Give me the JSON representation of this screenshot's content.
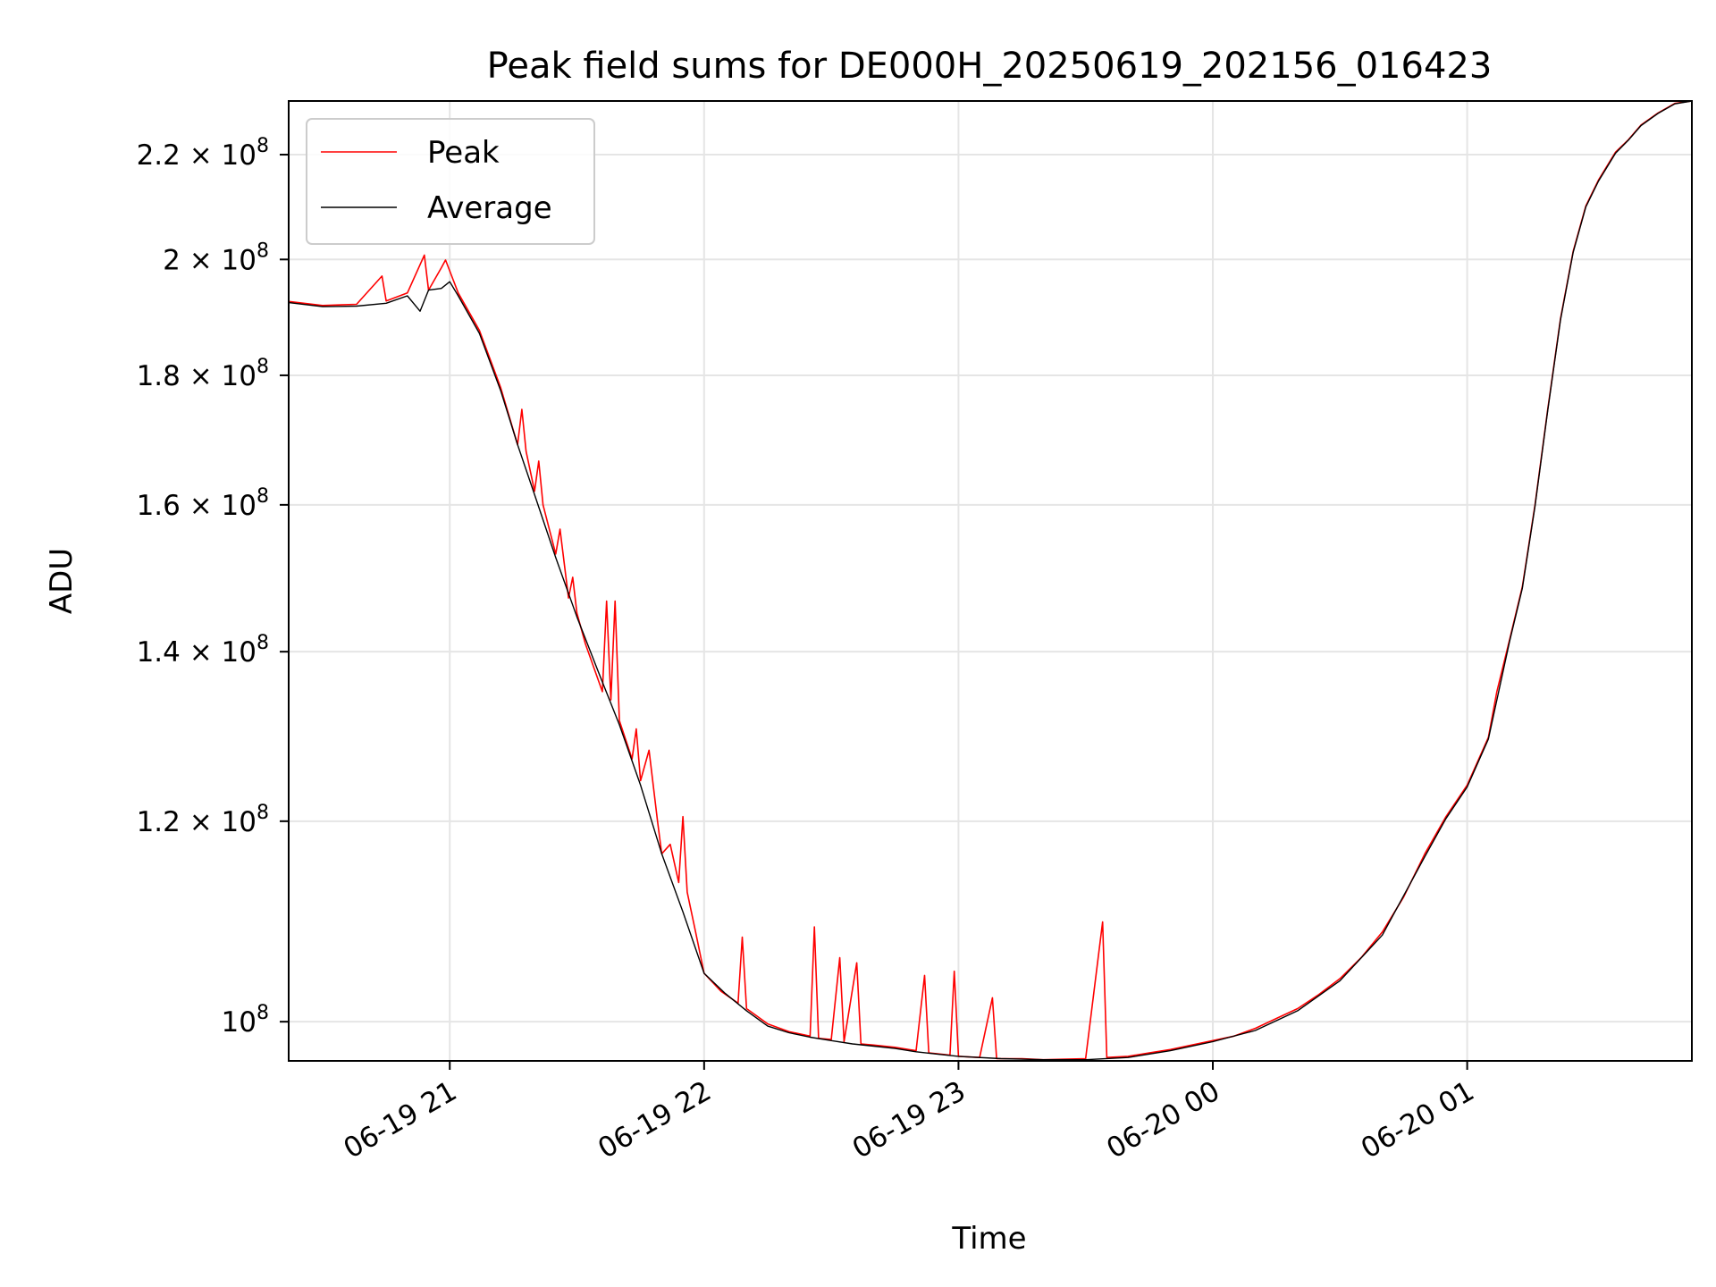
{
  "chart_data": {
    "type": "line",
    "title": "Peak field sums for DE000H_20250619_202156_016423",
    "xlabel": "Time",
    "ylabel": "ADU",
    "yscale": "log",
    "grid": true,
    "legend_position": "top-left",
    "xlim": [
      "2025-06-19 20:22",
      "2025-06-20 01:53"
    ],
    "ylim": [
      96500000,
      231000000
    ],
    "x_ticks": [
      {
        "x": "2025-06-19 21:00",
        "label": "06-19 21"
      },
      {
        "x": "2025-06-19 22:00",
        "label": "06-19 22"
      },
      {
        "x": "2025-06-19 23:00",
        "label": "06-19 23"
      },
      {
        "x": "2025-06-20 00:00",
        "label": "06-20 00"
      },
      {
        "x": "2025-06-20 01:00",
        "label": "06-20 01"
      }
    ],
    "y_ticks": [
      {
        "value": 100000000,
        "mantissa": "",
        "exponent": "8"
      },
      {
        "value": 120000000,
        "mantissa": "1.2",
        "exponent": "8"
      },
      {
        "value": 140000000,
        "mantissa": "1.4",
        "exponent": "8"
      },
      {
        "value": 160000000,
        "mantissa": "1.6",
        "exponent": "8"
      },
      {
        "value": 180000000,
        "mantissa": "1.8",
        "exponent": "8"
      },
      {
        "value": 200000000,
        "mantissa": "2",
        "exponent": "8"
      },
      {
        "value": 220000000,
        "mantissa": "2.2",
        "exponent": "8"
      }
    ],
    "tick_base": "10",
    "times_sign": "×",
    "series": [
      {
        "name": "Peak",
        "color": "#ff0000",
        "points": [
          [
            "2025-06-19 20:22",
            192500000
          ],
          [
            "2025-06-19 20:30",
            191800000
          ],
          [
            "2025-06-19 20:38",
            192000000
          ],
          [
            "2025-06-19 20:44",
            197000000
          ],
          [
            "2025-06-19 20:45",
            192600000
          ],
          [
            "2025-06-19 20:50",
            194000000
          ],
          [
            "2025-06-19 20:54",
            200800000
          ],
          [
            "2025-06-19 20:55",
            194500000
          ],
          [
            "2025-06-19 20:58",
            198500000
          ],
          [
            "2025-06-19 20:59",
            199900000
          ],
          [
            "2025-06-19 21:02",
            194000000
          ],
          [
            "2025-06-19 21:07",
            187500000
          ],
          [
            "2025-06-19 21:12",
            178000000
          ],
          [
            "2025-06-19 21:16",
            169000000
          ],
          [
            "2025-06-19 21:17",
            174500000
          ],
          [
            "2025-06-19 21:18",
            168000000
          ],
          [
            "2025-06-19 21:20",
            162000000
          ],
          [
            "2025-06-19 21:21",
            166500000
          ],
          [
            "2025-06-19 21:22",
            160000000
          ],
          [
            "2025-06-19 21:25",
            153000000
          ],
          [
            "2025-06-19 21:26",
            156500000
          ],
          [
            "2025-06-19 21:28",
            147000000
          ],
          [
            "2025-06-19 21:29",
            149800000
          ],
          [
            "2025-06-19 21:30",
            145000000
          ],
          [
            "2025-06-19 21:32",
            141000000
          ],
          [
            "2025-06-19 21:36",
            135000000
          ],
          [
            "2025-06-19 21:37",
            146600000
          ],
          [
            "2025-06-19 21:38",
            134000000
          ],
          [
            "2025-06-19 21:39",
            146600000
          ],
          [
            "2025-06-19 21:40",
            131500000
          ],
          [
            "2025-06-19 21:43",
            127000000
          ],
          [
            "2025-06-19 21:44",
            130500000
          ],
          [
            "2025-06-19 21:45",
            124500000
          ],
          [
            "2025-06-19 21:47",
            128000000
          ],
          [
            "2025-06-19 21:49",
            120000000
          ],
          [
            "2025-06-19 21:50",
            116500000
          ],
          [
            "2025-06-19 21:52",
            117500000
          ],
          [
            "2025-06-19 21:54",
            113500000
          ],
          [
            "2025-06-19 21:55",
            120500000
          ],
          [
            "2025-06-19 21:56",
            112500000
          ],
          [
            "2025-06-19 21:58",
            108500000
          ],
          [
            "2025-06-19 22:00",
            104500000
          ],
          [
            "2025-06-19 22:04",
            102800000
          ],
          [
            "2025-06-19 22:08",
            101700000
          ],
          [
            "2025-06-19 22:09",
            108000000
          ],
          [
            "2025-06-19 22:10",
            101200000
          ],
          [
            "2025-06-19 22:15",
            99800000
          ],
          [
            "2025-06-19 22:20",
            99100000
          ],
          [
            "2025-06-19 22:25",
            98700000
          ],
          [
            "2025-06-19 22:26",
            109000000
          ],
          [
            "2025-06-19 22:27",
            98500000
          ],
          [
            "2025-06-19 22:30",
            98400000
          ],
          [
            "2025-06-19 22:32",
            106000000
          ],
          [
            "2025-06-19 22:33",
            98200000
          ],
          [
            "2025-06-19 22:36",
            105500000
          ],
          [
            "2025-06-19 22:37",
            98000000
          ],
          [
            "2025-06-19 22:40",
            97900000
          ],
          [
            "2025-06-19 22:45",
            97700000
          ],
          [
            "2025-06-19 22:50",
            97400000
          ],
          [
            "2025-06-19 22:52",
            104300000
          ],
          [
            "2025-06-19 22:53",
            97200000
          ],
          [
            "2025-06-19 22:58",
            97000000
          ],
          [
            "2025-06-19 22:59",
            104700000
          ],
          [
            "2025-06-19 23:00",
            96900000
          ],
          [
            "2025-06-19 23:05",
            96800000
          ],
          [
            "2025-06-19 23:08",
            102200000
          ],
          [
            "2025-06-19 23:09",
            96700000
          ],
          [
            "2025-06-19 23:15",
            96700000
          ],
          [
            "2025-06-19 23:20",
            96600000
          ],
          [
            "2025-06-19 23:30",
            96700000
          ],
          [
            "2025-06-19 23:34",
            109500000
          ],
          [
            "2025-06-19 23:35",
            96800000
          ],
          [
            "2025-06-19 23:40",
            96900000
          ],
          [
            "2025-06-19 23:45",
            97200000
          ],
          [
            "2025-06-19 23:50",
            97500000
          ],
          [
            "2025-06-19 23:55",
            97900000
          ],
          [
            "2025-06-20 00:00",
            98300000
          ],
          [
            "2025-06-20 00:05",
            98700000
          ],
          [
            "2025-06-20 00:10",
            99400000
          ],
          [
            "2025-06-20 00:15",
            100300000
          ],
          [
            "2025-06-20 00:20",
            101200000
          ],
          [
            "2025-06-20 00:25",
            102500000
          ],
          [
            "2025-06-20 00:30",
            104000000
          ],
          [
            "2025-06-20 00:35",
            106000000
          ],
          [
            "2025-06-20 00:40",
            108500000
          ],
          [
            "2025-06-20 00:45",
            112000000
          ],
          [
            "2025-06-20 00:50",
            116500000
          ],
          [
            "2025-06-20 00:55",
            120500000
          ],
          [
            "2025-06-20 01:00",
            124000000
          ],
          [
            "2025-06-20 01:05",
            129500000
          ],
          [
            "2025-06-20 01:07",
            135000000
          ],
          [
            "2025-06-20 01:10",
            141500000
          ],
          [
            "2025-06-20 01:13",
            148500000
          ],
          [
            "2025-06-20 01:16",
            160000000
          ],
          [
            "2025-06-20 01:19",
            174500000
          ],
          [
            "2025-06-20 01:22",
            189500000
          ],
          [
            "2025-06-20 01:25",
            201500000
          ],
          [
            "2025-06-20 01:28",
            210000000
          ],
          [
            "2025-06-20 01:31",
            215000000
          ],
          [
            "2025-06-20 01:35",
            220500000
          ],
          [
            "2025-06-20 01:38",
            223000000
          ],
          [
            "2025-06-20 01:41",
            226000000
          ],
          [
            "2025-06-20 01:45",
            228500000
          ],
          [
            "2025-06-20 01:49",
            230500000
          ],
          [
            "2025-06-20 01:53",
            231000000
          ]
        ]
      },
      {
        "name": "Average",
        "color": "#000000",
        "points": [
          [
            "2025-06-19 20:22",
            192300000
          ],
          [
            "2025-06-19 20:30",
            191600000
          ],
          [
            "2025-06-19 20:38",
            191700000
          ],
          [
            "2025-06-19 20:45",
            192200000
          ],
          [
            "2025-06-19 20:50",
            193500000
          ],
          [
            "2025-06-19 20:53",
            190800000
          ],
          [
            "2025-06-19 20:55",
            194500000
          ],
          [
            "2025-06-19 20:58",
            194800000
          ],
          [
            "2025-06-19 21:00",
            196000000
          ],
          [
            "2025-06-19 21:02",
            193500000
          ],
          [
            "2025-06-19 21:07",
            187000000
          ],
          [
            "2025-06-19 21:12",
            177500000
          ],
          [
            "2025-06-19 21:16",
            169000000
          ],
          [
            "2025-06-19 21:20",
            161500000
          ],
          [
            "2025-06-19 21:25",
            152500000
          ],
          [
            "2025-06-19 21:30",
            144500000
          ],
          [
            "2025-06-19 21:35",
            137500000
          ],
          [
            "2025-06-19 21:40",
            131000000
          ],
          [
            "2025-06-19 21:45",
            124000000
          ],
          [
            "2025-06-19 21:50",
            116500000
          ],
          [
            "2025-06-19 21:55",
            110500000
          ],
          [
            "2025-06-19 22:00",
            104500000
          ],
          [
            "2025-06-19 22:05",
            102600000
          ],
          [
            "2025-06-19 22:10",
            101000000
          ],
          [
            "2025-06-19 22:15",
            99600000
          ],
          [
            "2025-06-19 22:20",
            99000000
          ],
          [
            "2025-06-19 22:25",
            98600000
          ],
          [
            "2025-06-19 22:30",
            98300000
          ],
          [
            "2025-06-19 22:35",
            98000000
          ],
          [
            "2025-06-19 22:40",
            97800000
          ],
          [
            "2025-06-19 22:45",
            97600000
          ],
          [
            "2025-06-19 22:50",
            97300000
          ],
          [
            "2025-06-19 22:55",
            97100000
          ],
          [
            "2025-06-19 23:00",
            96900000
          ],
          [
            "2025-06-19 23:10",
            96700000
          ],
          [
            "2025-06-19 23:20",
            96600000
          ],
          [
            "2025-06-19 23:30",
            96600000
          ],
          [
            "2025-06-19 23:40",
            96800000
          ],
          [
            "2025-06-19 23:50",
            97400000
          ],
          [
            "2025-06-20 00:00",
            98200000
          ],
          [
            "2025-06-20 00:10",
            99200000
          ],
          [
            "2025-06-20 00:20",
            101000000
          ],
          [
            "2025-06-20 00:30",
            103800000
          ],
          [
            "2025-06-20 00:40",
            108200000
          ],
          [
            "2025-06-20 00:50",
            116200000
          ],
          [
            "2025-06-20 00:55",
            120300000
          ],
          [
            "2025-06-20 01:00",
            123800000
          ],
          [
            "2025-06-20 01:05",
            129300000
          ],
          [
            "2025-06-20 01:10",
            141300000
          ],
          [
            "2025-06-20 01:13",
            148300000
          ],
          [
            "2025-06-20 01:16",
            159800000
          ],
          [
            "2025-06-20 01:19",
            174300000
          ],
          [
            "2025-06-20 01:22",
            189300000
          ],
          [
            "2025-06-20 01:25",
            201300000
          ],
          [
            "2025-06-20 01:28",
            209800000
          ],
          [
            "2025-06-20 01:31",
            214800000
          ],
          [
            "2025-06-20 01:35",
            220300000
          ],
          [
            "2025-06-20 01:38",
            222900000
          ],
          [
            "2025-06-20 01:41",
            225900000
          ],
          [
            "2025-06-20 01:45",
            228400000
          ],
          [
            "2025-06-20 01:49",
            230400000
          ],
          [
            "2025-06-20 01:53",
            231000000
          ]
        ]
      }
    ]
  }
}
